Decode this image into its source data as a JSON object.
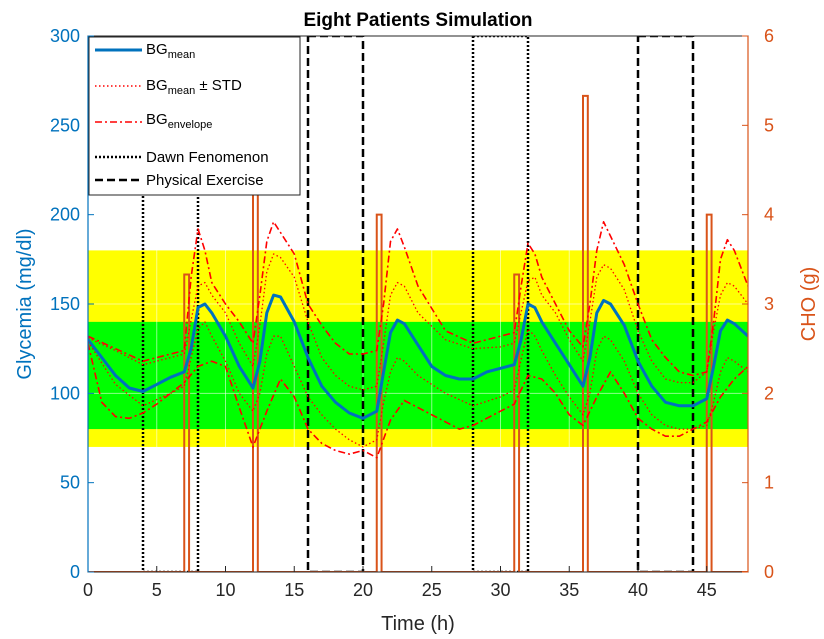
{
  "colors": {
    "left_axis": "#0072BD",
    "right_axis": "#D95319",
    "band_outer": "#FFFF00",
    "band_inner": "#00FF00",
    "mean": "#0072BD",
    "std": "#FF0000",
    "envelope": "#FF0000",
    "dawn": "#000000",
    "exercise": "#000000",
    "cho": "#D95319"
  },
  "chart_data": {
    "type": "line",
    "title": "Eight Patients Simulation",
    "xlabel": "Time (h)",
    "ylabel_left": "Glycemia (mg/dl)",
    "ylabel_right": "CHO (g)",
    "xlim": [
      0,
      48
    ],
    "ylim_left": [
      0,
      300
    ],
    "ylim_right": [
      0,
      6
    ],
    "x_ticks": [
      0,
      5,
      10,
      15,
      20,
      25,
      30,
      35,
      40,
      45
    ],
    "y_ticks_left": [
      0,
      50,
      100,
      150,
      200,
      250,
      300
    ],
    "y_ticks_right": [
      0,
      1,
      2,
      3,
      4,
      5,
      6
    ],
    "grid": true,
    "legend_position": "top-left",
    "target_bands": [
      {
        "range": [
          70,
          180
        ],
        "color": "yellow"
      },
      {
        "range": [
          80,
          140
        ],
        "color": "green"
      }
    ],
    "legend": [
      {
        "base": "BG",
        "sub": "mean",
        "suffix": "",
        "style": "solid-blue"
      },
      {
        "base": "BG",
        "sub": "mean",
        "suffix": " ± STD",
        "style": "dotted-red"
      },
      {
        "base": "BG",
        "sub": "envelope",
        "suffix": "",
        "style": "dashdot-red"
      },
      {
        "base": "Dawn Fenomenon",
        "sub": "",
        "suffix": "",
        "style": "dotted-black"
      },
      {
        "base": "Physical Exercise",
        "sub": "",
        "suffix": "",
        "style": "dashed-black"
      }
    ],
    "series": [
      {
        "name": "BG mean",
        "axis": "left",
        "x": [
          0,
          1,
          2,
          3,
          4,
          5,
          6,
          7,
          7.5,
          8,
          8.5,
          9,
          10,
          11,
          12,
          12.5,
          13,
          13.5,
          14,
          15,
          16,
          17,
          18,
          19,
          20,
          21,
          21.5,
          22,
          22.5,
          23,
          24,
          25,
          26,
          27,
          28,
          29,
          30,
          31,
          31.5,
          32,
          32.5,
          33,
          34,
          35,
          36,
          36.5,
          37,
          37.5,
          38,
          39,
          40,
          41,
          42,
          43,
          44,
          45,
          45.5,
          46,
          46.5,
          47,
          48
        ],
        "y": [
          130,
          120,
          110,
          103,
          101,
          105,
          109,
          112,
          125,
          148,
          150,
          145,
          132,
          115,
          103,
          118,
          145,
          155,
          154,
          140,
          120,
          104,
          95,
          89,
          86,
          90,
          112,
          134,
          141,
          139,
          127,
          115,
          110,
          108,
          108,
          112,
          114,
          116,
          130,
          150,
          148,
          140,
          128,
          116,
          104,
          120,
          145,
          152,
          150,
          138,
          118,
          104,
          95,
          93,
          93,
          97,
          115,
          135,
          141,
          139,
          132
        ]
      },
      {
        "name": "BG mean + STD",
        "axis": "left",
        "x": [
          0,
          2,
          4,
          6,
          7,
          8,
          8.5,
          9,
          10,
          11,
          12,
          12.5,
          13,
          13.5,
          14,
          15,
          16,
          17,
          18,
          19,
          20,
          21,
          21.5,
          22,
          22.5,
          23,
          24,
          26,
          28,
          30,
          31,
          32,
          32.5,
          33,
          34,
          35,
          36,
          36.5,
          37,
          37.5,
          38,
          39,
          40,
          41,
          42,
          43,
          44,
          45,
          45.5,
          46,
          46.5,
          47,
          48
        ],
        "y": [
          131,
          124,
          116,
          120,
          122,
          160,
          162,
          155,
          145,
          128,
          115,
          138,
          168,
          178,
          176,
          165,
          140,
          120,
          110,
          104,
          102,
          104,
          128,
          155,
          162,
          160,
          145,
          130,
          125,
          126,
          128,
          163,
          165,
          155,
          145,
          130,
          118,
          140,
          165,
          172,
          170,
          158,
          135,
          118,
          108,
          106,
          106,
          112,
          135,
          155,
          162,
          160,
          150
        ]
      },
      {
        "name": "BG mean - STD",
        "axis": "left",
        "x": [
          0,
          2,
          4,
          6,
          7,
          8,
          8.5,
          9,
          10,
          11,
          12,
          12.5,
          13,
          13.5,
          14,
          15,
          16,
          17,
          18,
          19,
          20,
          21,
          21.5,
          22,
          22.5,
          23,
          24,
          26,
          28,
          30,
          31,
          32,
          32.5,
          33,
          34,
          35,
          36,
          36.5,
          37,
          37.5,
          38,
          39,
          40,
          41,
          42,
          43,
          44,
          45,
          45.5,
          46,
          46.5,
          47,
          48
        ],
        "y": [
          129,
          105,
          93,
          100,
          104,
          136,
          140,
          132,
          118,
          100,
          90,
          100,
          122,
          132,
          132,
          115,
          98,
          88,
          80,
          74,
          70,
          74,
          95,
          112,
          120,
          118,
          110,
          100,
          93,
          98,
          102,
          136,
          132,
          124,
          110,
          98,
          88,
          100,
          124,
          132,
          130,
          118,
          100,
          88,
          82,
          80,
          80,
          82,
          95,
          112,
          120,
          118,
          112
        ]
      },
      {
        "name": "BG envelope max",
        "axis": "left",
        "x": [
          0,
          2,
          4,
          6,
          7,
          7.5,
          8,
          8.5,
          9,
          10,
          11,
          12,
          12.5,
          13,
          13.5,
          14,
          15,
          16,
          17,
          18,
          19,
          20,
          21,
          21.5,
          22,
          22.5,
          23,
          24,
          26,
          28,
          30,
          31,
          31.5,
          32,
          32.5,
          33,
          34,
          35,
          36,
          36.5,
          37,
          37.5,
          38,
          39,
          40,
          41,
          42,
          43,
          44,
          45,
          45.5,
          46,
          46.5,
          47,
          48
        ],
        "y": [
          132,
          125,
          118,
          122,
          124,
          165,
          192,
          180,
          162,
          150,
          140,
          128,
          155,
          185,
          196,
          190,
          178,
          150,
          138,
          128,
          122,
          122,
          124,
          150,
          185,
          192,
          182,
          160,
          135,
          128,
          132,
          134,
          160,
          184,
          178,
          165,
          150,
          135,
          126,
          150,
          180,
          196,
          188,
          172,
          150,
          130,
          120,
          112,
          110,
          112,
          140,
          175,
          186,
          180,
          160
        ]
      },
      {
        "name": "BG envelope min",
        "axis": "left",
        "x": [
          0,
          1,
          2,
          3,
          4,
          5,
          6,
          7,
          8,
          9,
          10,
          11,
          12,
          13,
          14,
          15,
          16,
          17,
          18,
          19,
          20,
          21,
          22,
          23,
          24,
          25,
          26,
          27,
          28,
          29,
          30,
          31,
          32,
          33,
          34,
          35,
          36,
          37,
          38,
          39,
          40,
          41,
          42,
          43,
          44,
          45,
          46,
          47,
          48
        ],
        "y": [
          128,
          95,
          87,
          86,
          89,
          94,
          100,
          106,
          115,
          118,
          115,
          92,
          70,
          90,
          108,
          98,
          80,
          72,
          68,
          66,
          68,
          64,
          85,
          96,
          92,
          88,
          84,
          80,
          82,
          86,
          90,
          94,
          110,
          108,
          100,
          88,
          82,
          98,
          112,
          100,
          86,
          80,
          76,
          76,
          80,
          84,
          98,
          108,
          115
        ]
      }
    ],
    "dawn_phenomenon": [
      [
        4,
        8
      ],
      [
        28,
        32
      ]
    ],
    "physical_exercise": [
      [
        16,
        20
      ],
      [
        40,
        44
      ]
    ],
    "cho_meals": [
      {
        "x": 7,
        "value": 3.33
      },
      {
        "x": 12,
        "value": 4.8
      },
      {
        "x": 21,
        "value": 4.0
      },
      {
        "x": 31,
        "value": 3.33
      },
      {
        "x": 36,
        "value": 5.33
      },
      {
        "x": 45,
        "value": 4.0
      }
    ]
  }
}
